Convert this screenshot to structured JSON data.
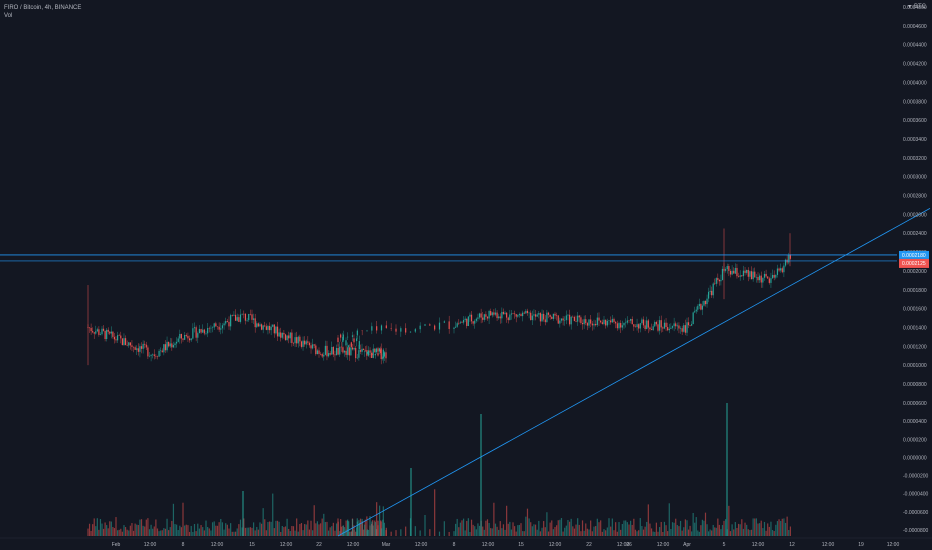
{
  "header": {
    "symbol_line": "FIRO / Bitcoin, 4h, BINANCE",
    "volume_label": "Vol"
  },
  "currency_label": "BTC",
  "menu_icon": "chevron-icon",
  "colors": {
    "background": "#131722",
    "up": "#26a69a",
    "down": "#ef5350",
    "line": "#2196f3",
    "text": "#b2b5be"
  },
  "chart_data": {
    "type": "candlestick",
    "price_axis_ticks": [
      "0.0004800",
      "0.0004600",
      "0.0004400",
      "0.0004200",
      "0.0004000",
      "0.0003800",
      "0.0003600",
      "0.0003400",
      "0.0003200",
      "0.0003000",
      "0.0002800",
      "0.0002600",
      "0.0002400",
      "0.0002200",
      "0.0002000",
      "0.0001800",
      "0.0001600",
      "0.0001400",
      "0.0001200",
      "0.0001000",
      "0.0000800"
    ],
    "volume_axis_ticks": [
      "0.0000600",
      "0.0000400",
      "0.0000200",
      "0.0000000",
      "-0.0000200",
      "-0.0000400",
      "-0.0000600",
      "-0.0000800"
    ],
    "x_ticks": [
      "Feb",
      "12:00",
      "8",
      "12:00",
      "15",
      "12:00",
      "22",
      "12:00",
      "Mar",
      "12:00",
      "8",
      "12:00",
      "15",
      "12:00",
      "22",
      "12:00",
      "26",
      "12:00",
      "Apr",
      "5",
      "12:00",
      "12",
      "12:00",
      "19",
      "12:00"
    ],
    "price_range": [
      7e-05,
      0.0005
    ],
    "current_price_label": "0.0002180",
    "current_price": 0.000218,
    "secondary_label": "0.0002125",
    "trendline": {
      "from": [
        "Mar 4",
        2e-05
      ],
      "to": [
        "Apr 21",
        0.00026
      ]
    },
    "horizontal_line": 0.000218,
    "key_points": [
      {
        "x": "Jan 29",
        "y": 0.00014
      },
      {
        "x": "Feb 5",
        "y": 0.000112
      },
      {
        "x": "Feb 8",
        "y": 0.00013
      },
      {
        "x": "Feb 14",
        "y": 0.000152
      },
      {
        "x": "Feb 22",
        "y": 0.000115
      },
      {
        "x": "Mar 1",
        "y": 0.000112
      },
      {
        "x": "Mar 5",
        "y": 0.000135
      },
      {
        "x": "Mar 12",
        "y": 0.000155
      },
      {
        "x": "Mar 20",
        "y": 0.000148
      },
      {
        "x": "Apr 1",
        "y": 0.00014
      },
      {
        "x": "Apr 5",
        "y": 0.0002
      },
      {
        "x": "Apr 10",
        "y": 0.00019
      },
      {
        "x": "Apr 12",
        "y": 0.000218
      }
    ]
  }
}
